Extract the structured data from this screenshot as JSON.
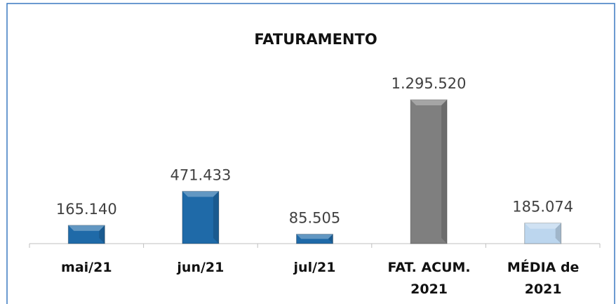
{
  "chart_data": {
    "type": "bar",
    "title": "FATURAMENTO",
    "categories": [
      "mai/21",
      "jun/21",
      "jul/21",
      "FAT. ACUM. 2021",
      "MÉDIA de 2021"
    ],
    "values": [
      165140,
      471433,
      85505,
      1295520,
      185074
    ],
    "value_labels": [
      "165.140",
      "471.433",
      "85.505",
      "1.295.520",
      "185.074"
    ],
    "colors": [
      "#1f6aa8",
      "#1f6aa8",
      "#1f6aa8",
      "#7f7f7f",
      "#bcd6ee"
    ]
  }
}
